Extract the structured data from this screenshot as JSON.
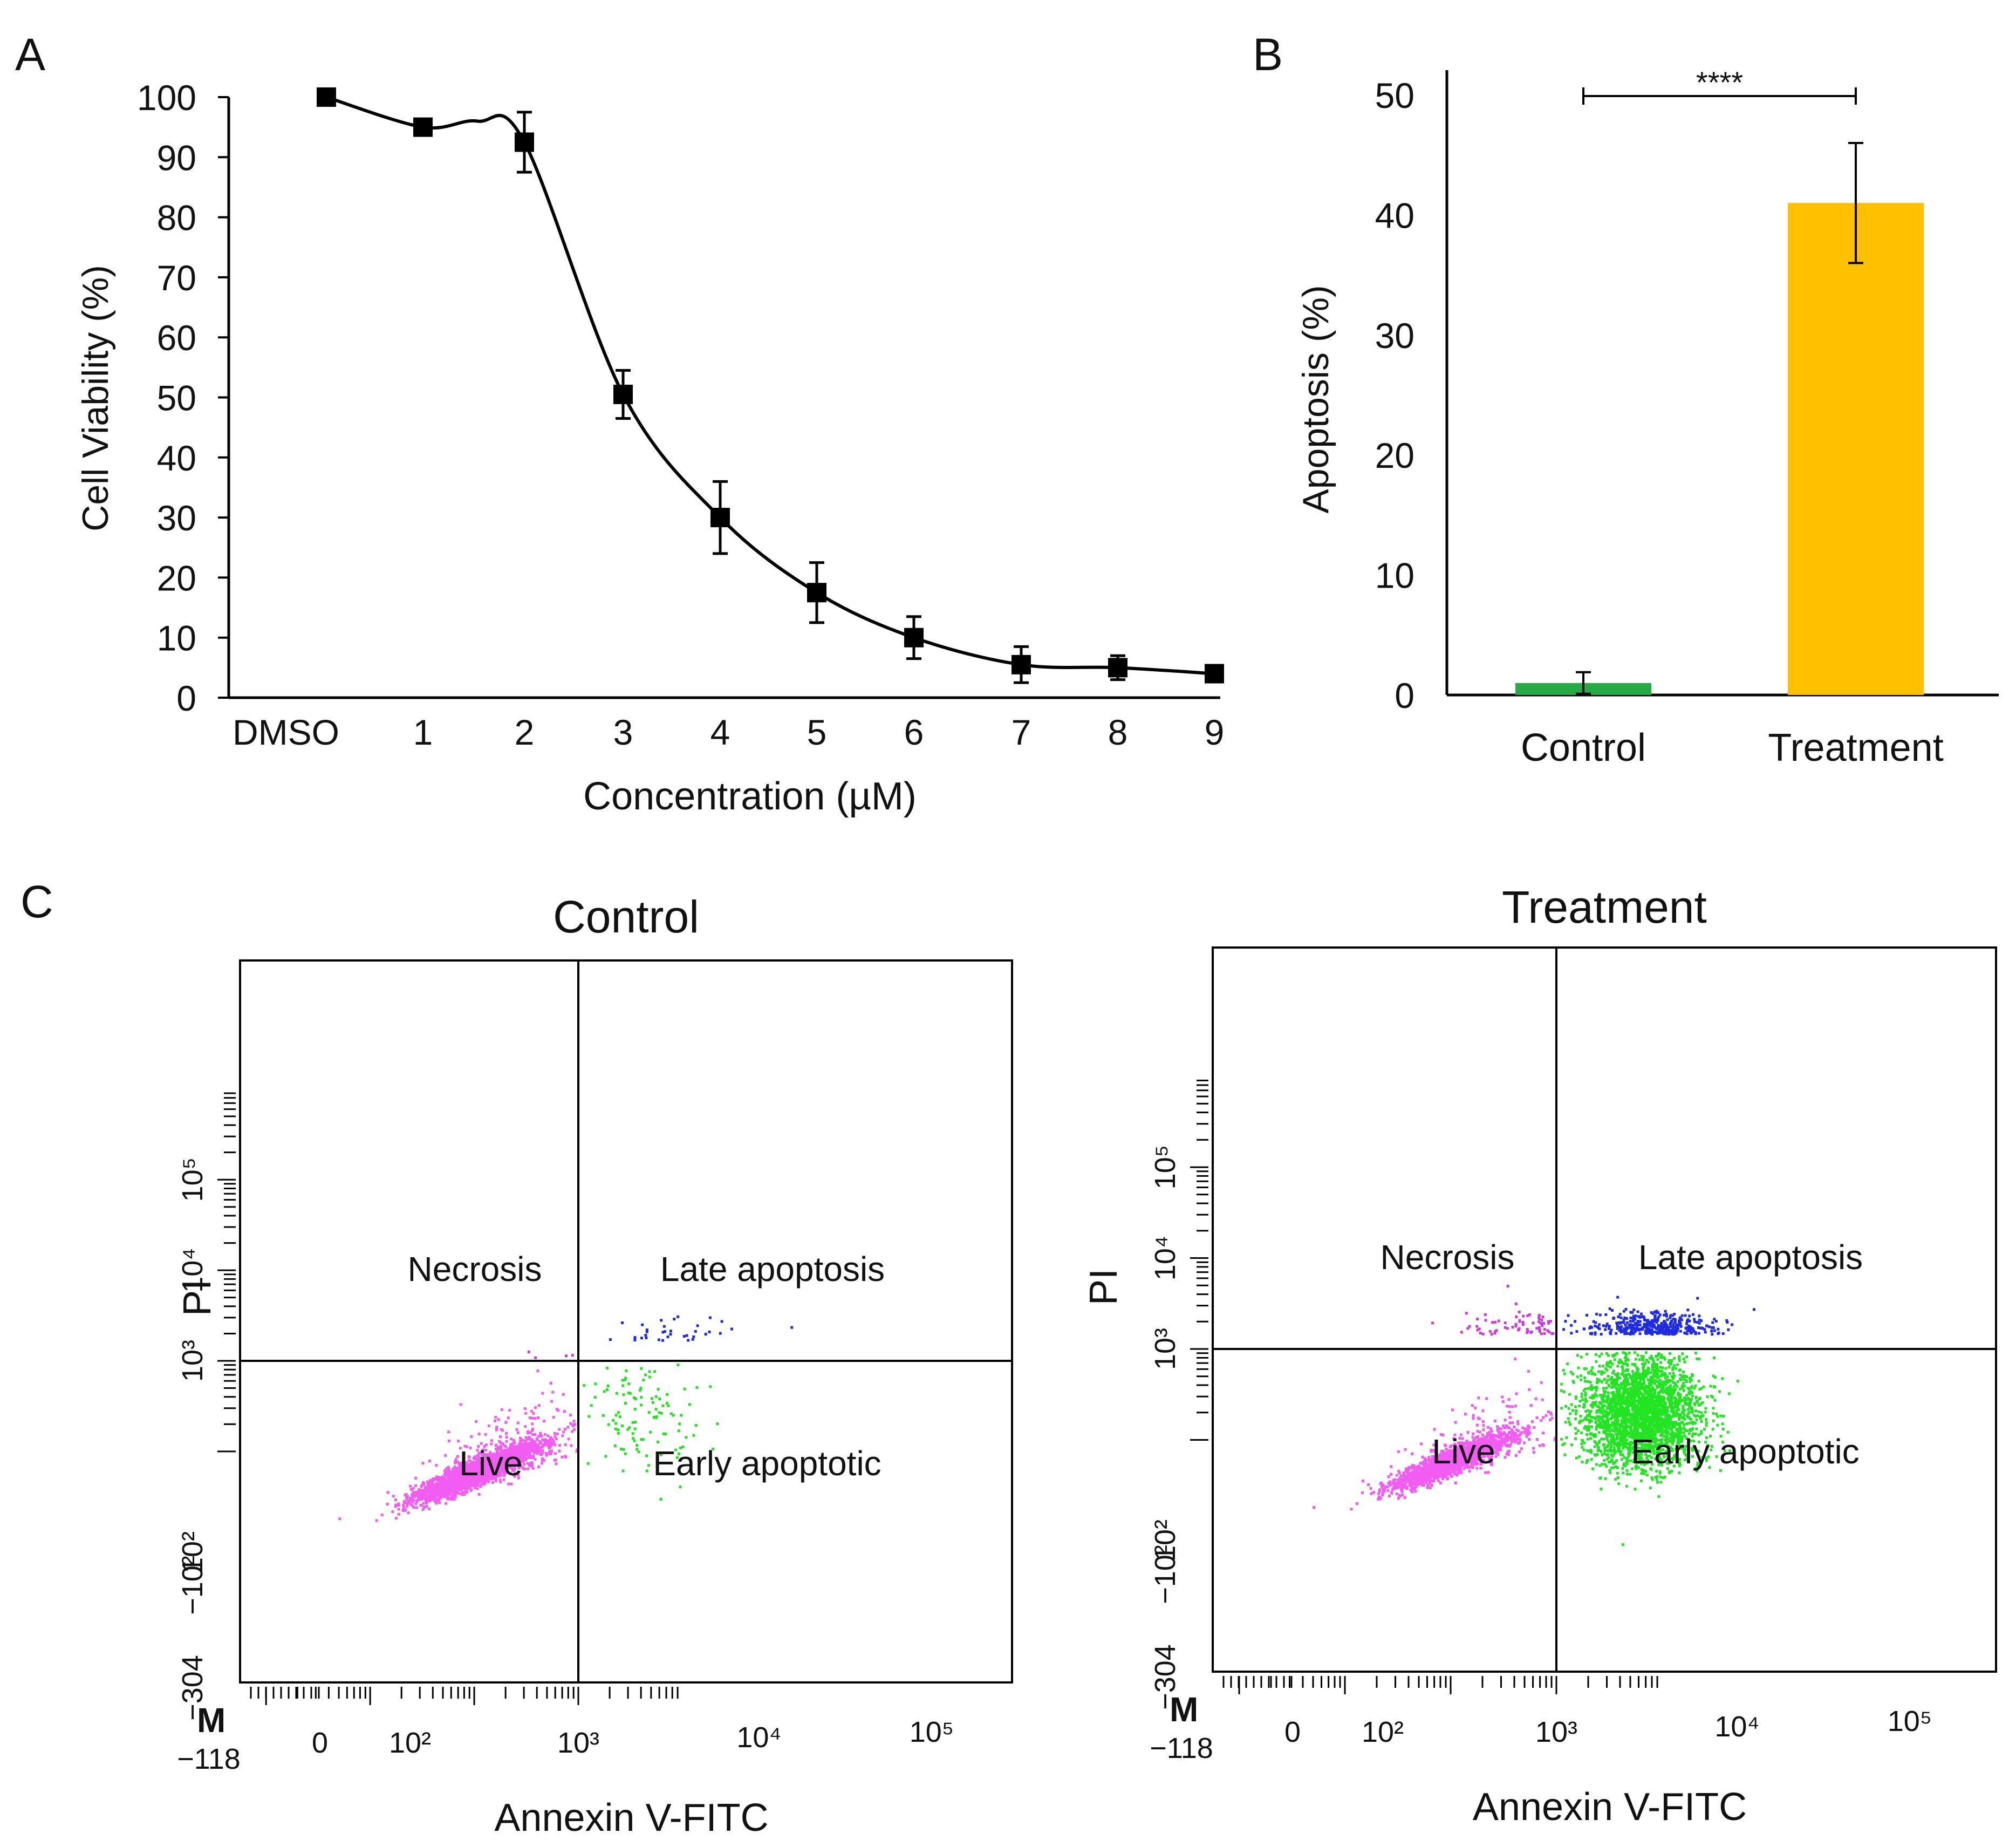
{
  "figure": {
    "panel_labels": [
      "A",
      "B",
      "C"
    ]
  },
  "colors": {
    "axis": "#000000",
    "control_bar": "#27a945",
    "treatment_bar": "#ffc000",
    "live_dots": "#f25cf2",
    "early_dots": "#22e522",
    "late_dots": "#1f2be0",
    "necrosis_dots": "#c83dd8",
    "m_marker": "#1a3cff"
  },
  "chart_data": [
    {
      "panel": "A",
      "type": "line",
      "title": "",
      "xlabel": "Concentration (µM)",
      "ylabel": "Cell Viability (%)",
      "ylim": [
        0,
        100
      ],
      "yticks": [
        "0",
        "10",
        "20",
        "30",
        "40",
        "50",
        "60",
        "70",
        "80",
        "90",
        "100"
      ],
      "categories": [
        "DMSO",
        "1",
        "2",
        "3",
        "4",
        "5",
        "6",
        "7",
        "8",
        "9"
      ],
      "values": [
        100,
        95,
        92.5,
        50.5,
        30,
        17.5,
        10,
        5.5,
        5,
        4
      ],
      "errors": [
        0,
        1,
        5,
        4,
        6,
        5,
        3.5,
        3,
        2,
        1
      ],
      "grid": false,
      "legend": "none"
    },
    {
      "panel": "B",
      "type": "bar",
      "title": "",
      "xlabel": "",
      "ylabel": "Apoptosis (%)",
      "ylim": [
        0,
        50
      ],
      "yticks": [
        "0",
        "10",
        "20",
        "30",
        "40",
        "50"
      ],
      "categories": [
        "Control",
        "Treatment"
      ],
      "values": [
        1,
        41
      ],
      "errors": [
        0.9,
        5
      ],
      "significance": "****",
      "grid": false,
      "legend": "none"
    },
    {
      "panel": "C",
      "type": "scatter",
      "subplots": [
        {
          "title": "Control",
          "xlabel": "Annexin V-FITC",
          "ylabel": "PI",
          "x_ticks": [
            "−118",
            "0",
            "10²",
            "10³",
            "10⁴",
            "10⁵"
          ],
          "y_ticks": [
            "−304",
            "−10²",
            "10²",
            "10³",
            "10⁴",
            "10⁵"
          ],
          "quadrants": [
            "Necrosis",
            "Late apoptosis",
            "Live",
            "Early apoptotic"
          ],
          "marker": "M",
          "populations": [
            {
              "name": "Live",
              "center": [
                100,
                60
              ],
              "count": 3800
            },
            {
              "name": "Early apoptotic",
              "center": [
                4000,
                250
              ],
              "count": 110
            },
            {
              "name": "Late apoptosis",
              "center": [
                8000,
                1700
              ],
              "count": 35
            },
            {
              "name": "Necrosis",
              "center": [
                600,
                1100
              ],
              "count": 4
            }
          ]
        },
        {
          "title": "Treatment",
          "xlabel": "Annexin V-FITC",
          "ylabel": "PI",
          "x_ticks": [
            "−118",
            "0",
            "10²",
            "10³",
            "10⁴",
            "10⁵"
          ],
          "y_ticks": [
            "−304",
            "−10²",
            "10²",
            "10³",
            "10⁴",
            "10⁵"
          ],
          "quadrants": [
            "Necrosis",
            "Late apoptosis",
            "Live",
            "Early apoptotic"
          ],
          "marker": "M",
          "populations": [
            {
              "name": "Live",
              "center": [
                100,
                60
              ],
              "count": 3600
            },
            {
              "name": "Early apoptotic",
              "center": [
                6000,
                200
              ],
              "count": 2600
            },
            {
              "name": "Late apoptosis",
              "center": [
                8000,
                1500
              ],
              "count": 400
            },
            {
              "name": "Necrosis",
              "center": [
                500,
                1500
              ],
              "count": 70
            }
          ]
        }
      ]
    }
  ]
}
